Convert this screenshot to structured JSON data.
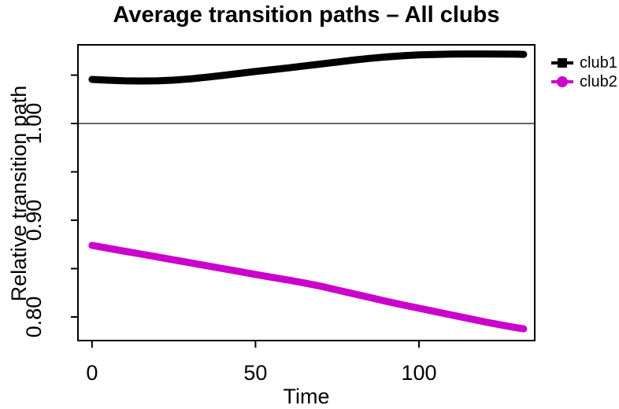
{
  "chart_data": {
    "type": "line",
    "title": "Average transition paths – All clubs",
    "xlabel": "Time",
    "ylabel": "Relative transition path",
    "grid": false,
    "legend_position": "right-outside",
    "xlim": [
      -4.3,
      135.4
    ],
    "ylim": [
      0.7756,
      1.0813
    ],
    "x_ticks": [
      0,
      50,
      100
    ],
    "y_ticks_labeled": [
      {
        "value": 1.0,
        "label": "1.00"
      },
      {
        "value": 0.9,
        "label": "0.90"
      },
      {
        "value": 0.8,
        "label": "0.80"
      }
    ],
    "y_ticks_minor": [
      1.05,
      0.95,
      0.85
    ],
    "reference_line_y": 1.0,
    "reference_line_color": "#333333",
    "x": [
      0,
      5,
      10,
      15,
      20,
      25,
      30,
      35,
      40,
      45,
      50,
      55,
      60,
      65,
      70,
      75,
      80,
      85,
      90,
      95,
      100,
      105,
      110,
      115,
      120,
      125,
      130,
      132
    ],
    "series": [
      {
        "name": "club1",
        "color": "#000000",
        "marker": "square",
        "values": [
          1.0455,
          1.0447,
          1.0441,
          1.0439,
          1.0441,
          1.0448,
          1.0461,
          1.0478,
          1.0497,
          1.0517,
          1.0537,
          1.0556,
          1.0575,
          1.0595,
          1.0615,
          1.0635,
          1.0655,
          1.0673,
          1.0688,
          1.07,
          1.0709,
          1.0714,
          1.0717,
          1.0719,
          1.0719,
          1.0718,
          1.0716,
          1.0715
        ]
      },
      {
        "name": "club2",
        "color": "#CC00CC",
        "marker": "circle",
        "values": [
          0.874,
          0.871,
          0.868,
          0.865,
          0.862,
          0.859,
          0.856,
          0.853,
          0.85,
          0.847,
          0.844,
          0.841,
          0.8381,
          0.8351,
          0.8318,
          0.8279,
          0.824,
          0.8201,
          0.8162,
          0.8125,
          0.809,
          0.8055,
          0.802,
          0.7985,
          0.795,
          0.7918,
          0.7888,
          0.7877
        ]
      }
    ]
  }
}
